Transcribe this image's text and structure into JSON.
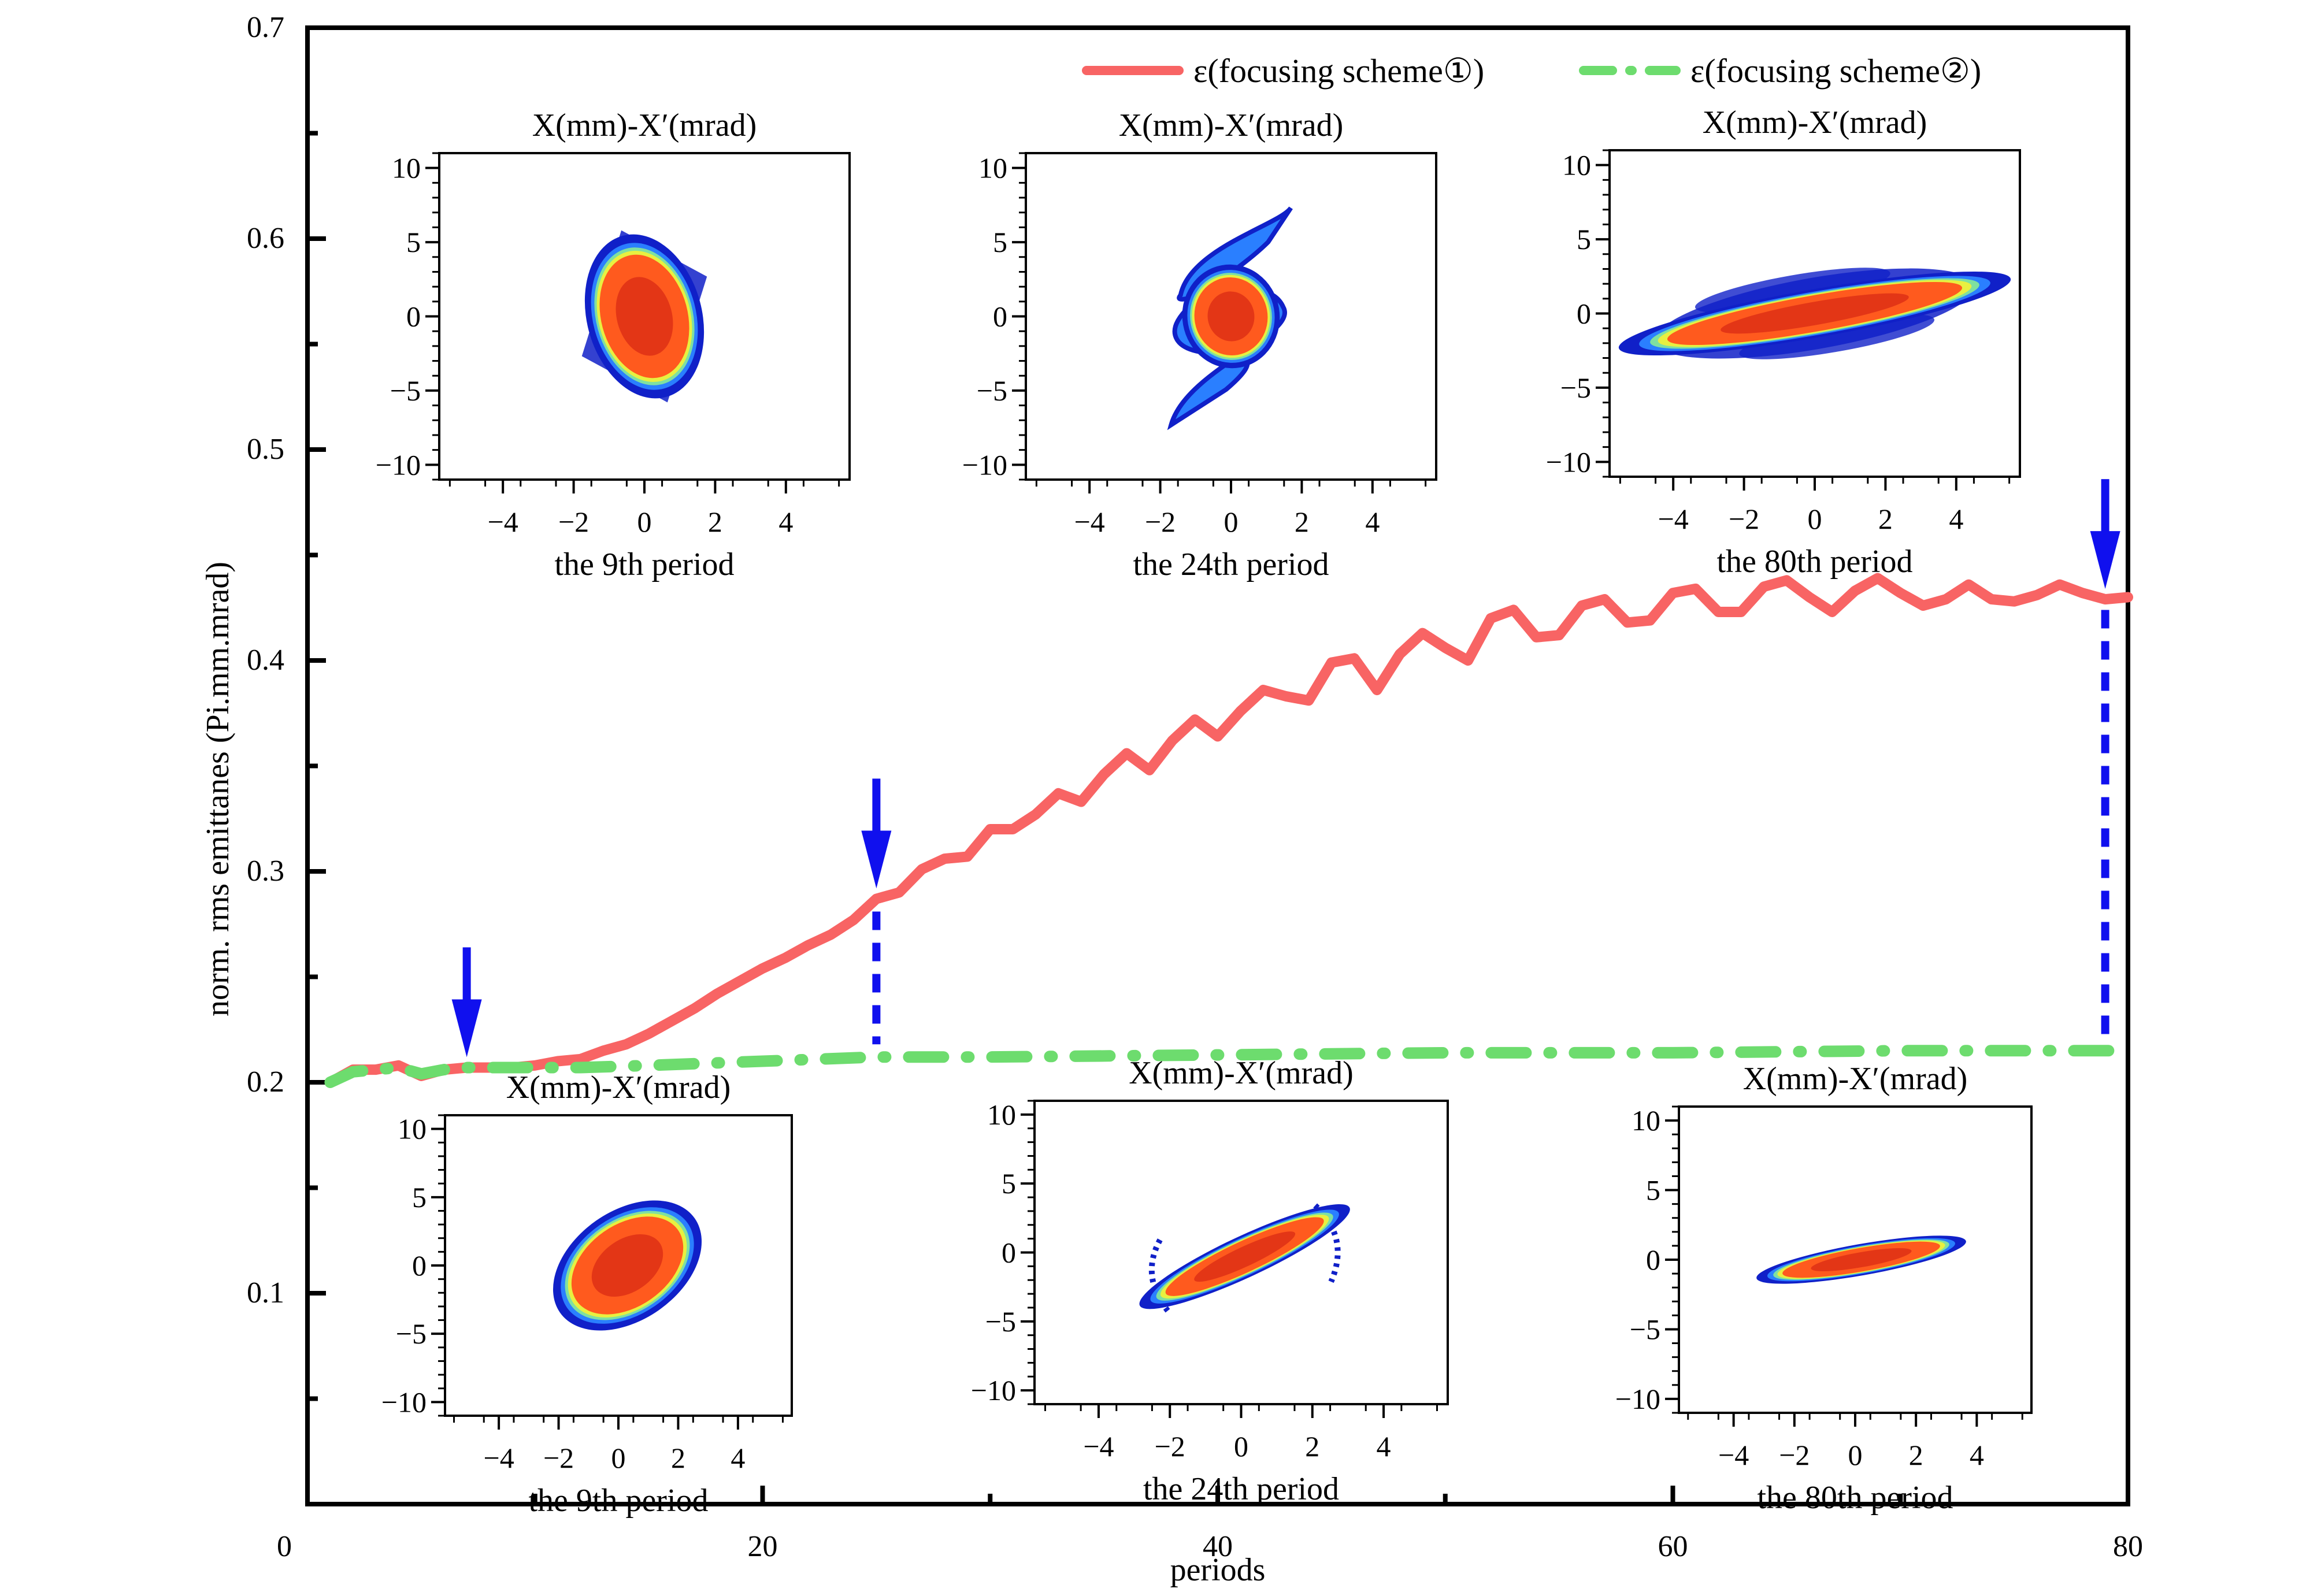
{
  "chart_data": {
    "type": "line",
    "title": "",
    "xlabel": "periods",
    "ylabel": "norm. rms emittanes (Pi.mm.mrad)",
    "xlim": [
      0,
      80
    ],
    "ylim": [
      0,
      0.7
    ],
    "x_ticks": [
      0,
      20,
      40,
      60,
      80
    ],
    "x_tick_labels": [
      "0",
      "20",
      "40",
      "60",
      "80"
    ],
    "y_ticks": [
      0.1,
      0.2,
      0.3,
      0.4,
      0.5,
      0.6,
      0.7
    ],
    "y_tick_labels": [
      "0.1",
      "0.2",
      "0.3",
      "0.4",
      "0.5",
      "0.6",
      "0.7"
    ],
    "grid": false,
    "legend_position": "top-right",
    "series": [
      {
        "name": "ε(focusing scheme①)",
        "color": "#f86464",
        "style": "solid",
        "x": [
          1,
          2,
          3,
          4,
          5,
          6,
          7,
          8,
          9,
          10,
          11,
          12,
          13,
          14,
          15,
          16,
          17,
          18,
          19,
          20,
          21,
          22,
          23,
          24,
          25,
          26,
          27,
          28,
          29,
          30,
          31,
          32,
          33,
          34,
          35,
          36,
          37,
          38,
          39,
          40,
          41,
          42,
          43,
          44,
          45,
          46,
          47,
          48,
          49,
          50,
          51,
          52,
          53,
          54,
          55,
          56,
          57,
          58,
          59,
          60,
          61,
          62,
          63,
          64,
          65,
          66,
          67,
          68,
          69,
          70,
          71,
          72,
          73,
          74,
          75,
          76,
          77,
          78,
          79,
          80
        ],
        "values": [
          0.2,
          0.206,
          0.206,
          0.208,
          0.203,
          0.206,
          0.207,
          0.207,
          0.207,
          0.208,
          0.21,
          0.211,
          0.215,
          0.218,
          0.223,
          0.229,
          0.235,
          0.242,
          0.248,
          0.254,
          0.259,
          0.265,
          0.27,
          0.277,
          0.287,
          0.29,
          0.301,
          0.306,
          0.307,
          0.32,
          0.32,
          0.327,
          0.337,
          0.333,
          0.346,
          0.356,
          0.348,
          0.362,
          0.372,
          0.364,
          0.376,
          0.386,
          0.383,
          0.381,
          0.399,
          0.401,
          0.386,
          0.403,
          0.413,
          0.406,
          0.4,
          0.42,
          0.424,
          0.411,
          0.412,
          0.426,
          0.429,
          0.418,
          0.419,
          0.432,
          0.434,
          0.423,
          0.423,
          0.435,
          0.438,
          0.43,
          0.423,
          0.433,
          0.439,
          0.432,
          0.426,
          0.429,
          0.436,
          0.429,
          0.428,
          0.431,
          0.436,
          0.432,
          0.429,
          0.43
        ]
      },
      {
        "name": "ε(focusing scheme②)",
        "color": "#6ddc6e",
        "style": "dash-dot",
        "x": [
          1,
          2,
          3,
          4,
          5,
          6,
          7,
          8,
          10,
          12,
          15,
          20,
          25,
          30,
          40,
          50,
          60,
          70,
          80
        ],
        "values": [
          0.2,
          0.205,
          0.206,
          0.207,
          0.204,
          0.206,
          0.207,
          0.207,
          0.207,
          0.207,
          0.208,
          0.21,
          0.212,
          0.212,
          0.213,
          0.214,
          0.214,
          0.215,
          0.215
        ]
      }
    ],
    "annotations": [
      {
        "type": "arrow",
        "color": "#1010ee",
        "x": 7,
        "label": "the 9th period marker"
      },
      {
        "type": "arrow-with-dotted-line",
        "color": "#1010ee",
        "x": 25,
        "y_from": 0.212,
        "y_to": 0.287,
        "label": "the 24th period marker"
      },
      {
        "type": "arrow-with-dotted-line",
        "color": "#1010ee",
        "x": 79,
        "y_from": 0.215,
        "y_to": 0.43,
        "label": "the 80th period marker"
      }
    ],
    "insets": [
      {
        "group": "scheme1",
        "title": "X(mm)-X′(mrad)",
        "caption": "the 9th period",
        "x_ticks": [
          "−4",
          "−2",
          "0",
          "2",
          "4"
        ],
        "y_ticks": [
          "10",
          "5",
          "0",
          "−5",
          "−10"
        ],
        "shape": "upright ellipse with diamond halo"
      },
      {
        "group": "scheme1",
        "title": "X(mm)-X′(mrad)",
        "caption": "the 24th period",
        "x_ticks": [
          "−4",
          "−2",
          "0",
          "2",
          "4"
        ],
        "y_ticks": [
          "10",
          "5",
          "0",
          "−5",
          "−10"
        ],
        "shape": "S-shaped filamented distribution"
      },
      {
        "group": "scheme1",
        "title": "X(mm)-X′(mrad)",
        "caption": "the 80th period",
        "x_ticks": [
          "−4",
          "−2",
          "0",
          "2",
          "4"
        ],
        "y_ticks": [
          "10",
          "5",
          "0",
          "−5",
          "−10"
        ],
        "shape": "wide tilted ellipse with spiral arms"
      },
      {
        "group": "scheme2",
        "title": "X(mm)-X′(mrad)",
        "caption": "the 9th period",
        "x_ticks": [
          "−4",
          "−2",
          "0",
          "2",
          "4"
        ],
        "y_ticks": [
          "10",
          "5",
          "0",
          "−5",
          "−10"
        ],
        "shape": "tilted ellipse"
      },
      {
        "group": "scheme2",
        "title": "X(mm)-X′(mrad)",
        "caption": "the 24th period",
        "x_ticks": [
          "−4",
          "−2",
          "0",
          "2",
          "4"
        ],
        "y_ticks": [
          "10",
          "5",
          "0",
          "−5",
          "−10"
        ],
        "shape": "tilted ellipse with small halo arms"
      },
      {
        "group": "scheme2",
        "title": "X(mm)-X′(mrad)",
        "caption": "the 80th period",
        "x_ticks": [
          "−4",
          "−2",
          "0",
          "2",
          "4"
        ],
        "y_ticks": [
          "10",
          "5",
          "0",
          "−5",
          "−10"
        ],
        "shape": "narrow tilted ellipse"
      }
    ],
    "density_colors": [
      "#1020c8",
      "#2a7fff",
      "#7fe0a0",
      "#e8f040",
      "#ff5a1e",
      "#cc1a10"
    ]
  }
}
